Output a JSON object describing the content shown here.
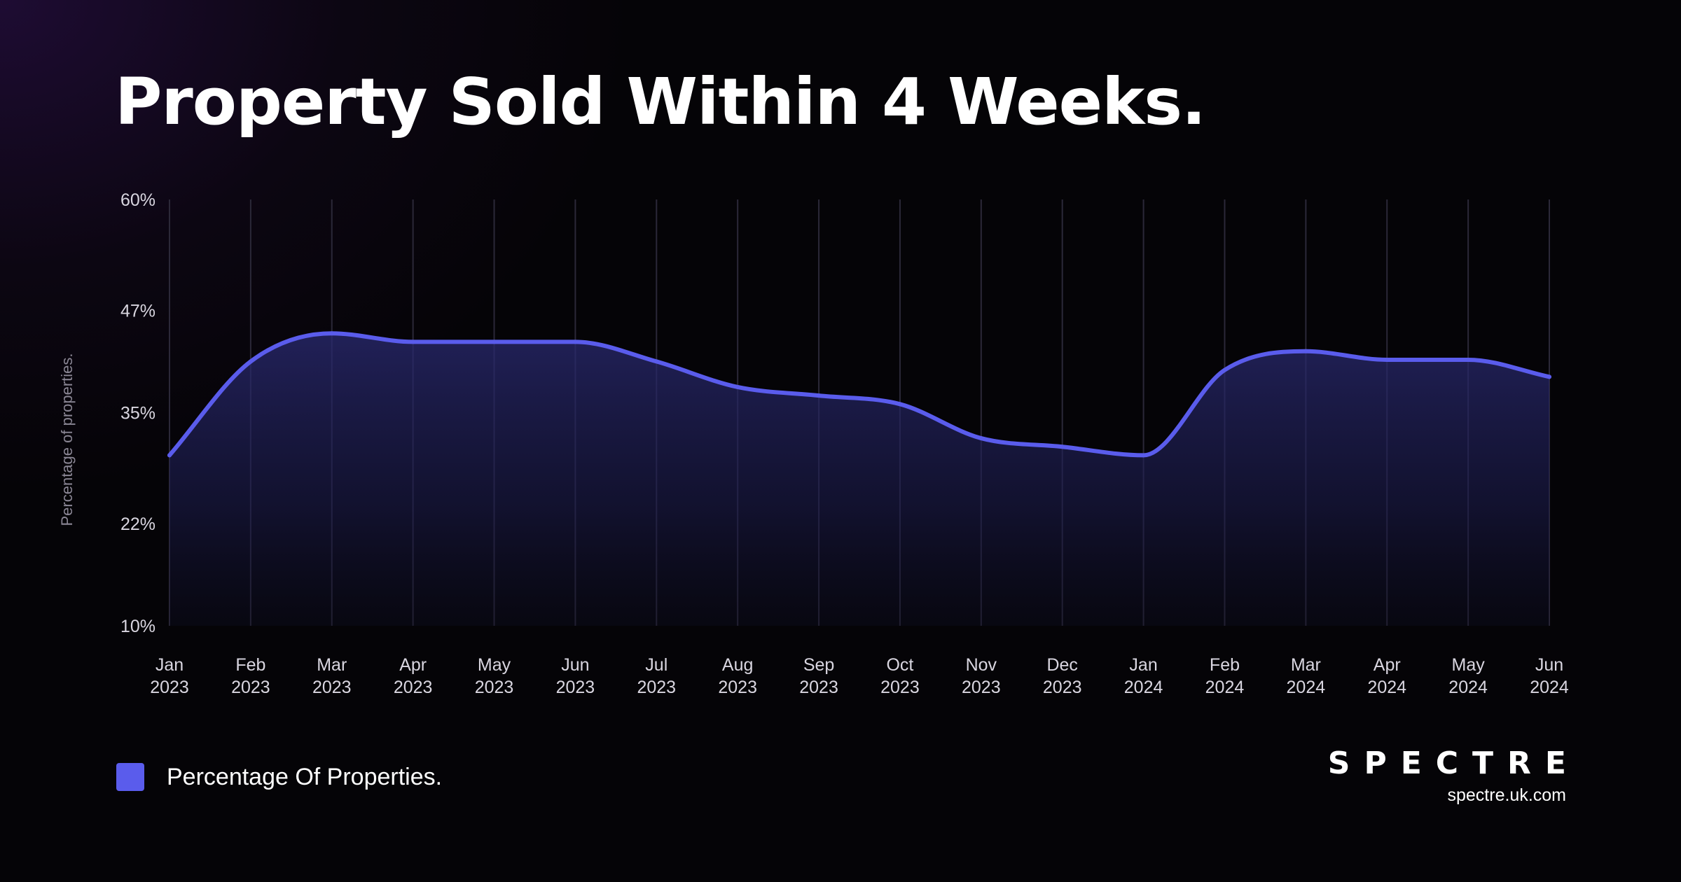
{
  "title": "Property Sold Within 4 Weeks.",
  "legend": {
    "label": "Percentage Of Properties."
  },
  "brand": {
    "logo": "SPECTRE",
    "url": "spectre.uk.com"
  },
  "colors": {
    "line": "#5a5cec",
    "background": "#050407"
  },
  "chart_data": {
    "type": "area",
    "title": "Property Sold Within 4 Weeks.",
    "ylabel": "Percentage of properties.",
    "xlabel": "",
    "ylim": [
      10,
      60
    ],
    "y_ticks": [
      "60%",
      "47%",
      "35%",
      "22%",
      "10%"
    ],
    "y_tick_values": [
      60,
      47,
      35,
      22,
      10
    ],
    "categories": [
      [
        "Jan",
        "2023"
      ],
      [
        "Feb",
        "2023"
      ],
      [
        "Mar",
        "2023"
      ],
      [
        "Apr",
        "2023"
      ],
      [
        "May",
        "2023"
      ],
      [
        "Jun",
        "2023"
      ],
      [
        "Jul",
        "2023"
      ],
      [
        "Aug",
        "2023"
      ],
      [
        "Sep",
        "2023"
      ],
      [
        "Oct",
        "2023"
      ],
      [
        "Nov",
        "2023"
      ],
      [
        "Dec",
        "2023"
      ],
      [
        "Jan",
        "2024"
      ],
      [
        "Feb",
        "2024"
      ],
      [
        "Mar",
        "2024"
      ],
      [
        "Apr",
        "2024"
      ],
      [
        "May",
        "2024"
      ],
      [
        "Jun",
        "2024"
      ]
    ],
    "series": [
      {
        "name": "Percentage Of Properties.",
        "values": [
          30,
          41,
          44.3,
          43.3,
          43.3,
          43.3,
          41,
          38,
          37,
          36,
          32,
          31,
          30,
          40,
          42.2,
          41.2,
          41.2,
          39.2
        ]
      }
    ],
    "grid": "vertical",
    "legend": "bottom-left"
  }
}
